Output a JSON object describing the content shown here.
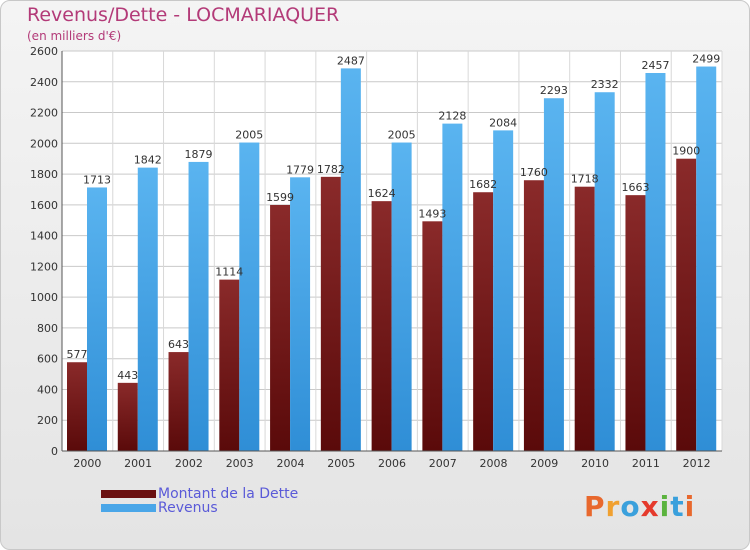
{
  "header": {
    "title": "Revenus/Dette - LOCMARIAQUER",
    "subtitle": "(en milliers d'€)"
  },
  "legend": {
    "debt_label": "Montant de la Dette",
    "revenue_label": "Revenus"
  },
  "logo": {
    "letters": [
      "P",
      "r",
      "o",
      "x",
      "i",
      "t",
      "i"
    ],
    "colors": [
      "#e8682d",
      "#f0a030",
      "#3aa0dc",
      "#e53a2c",
      "#5bb33e",
      "#3aa0dc",
      "#e8682d"
    ]
  },
  "colors": {
    "debt": "#7a1f1f",
    "revenue": "#4aa6e8",
    "title": "#b33a78"
  },
  "chart_data": {
    "type": "bar",
    "categories": [
      "2000",
      "2001",
      "2002",
      "2003",
      "2004",
      "2005",
      "2006",
      "2007",
      "2008",
      "2009",
      "2010",
      "2011",
      "2012"
    ],
    "series": [
      {
        "name": "Montant de la Dette",
        "values": [
          577,
          443,
          643,
          1114,
          1599,
          1782,
          1624,
          1493,
          1682,
          1760,
          1718,
          1663,
          1900
        ]
      },
      {
        "name": "Revenus",
        "values": [
          1713,
          1842,
          1879,
          2005,
          1779,
          2487,
          2005,
          2128,
          2084,
          2293,
          2332,
          2457,
          2499
        ]
      }
    ],
    "ylim": [
      0,
      2600
    ],
    "yticks": [
      0,
      200,
      400,
      600,
      800,
      1000,
      1200,
      1400,
      1600,
      1800,
      2000,
      2200,
      2400,
      2600
    ],
    "grid": true,
    "legend_position": "bottom-left"
  }
}
